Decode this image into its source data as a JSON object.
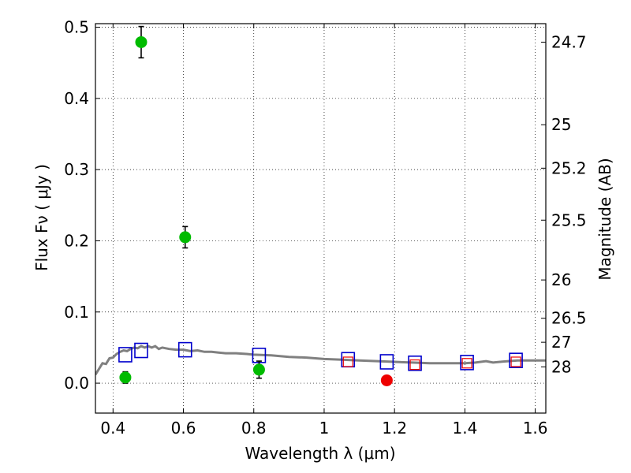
{
  "chart_data": {
    "type": "scatter",
    "xlabel": "Wavelength  λ (μm)",
    "ylabel": "Flux  Fν  ( μJy )",
    "ylabel_right": "Magnitude (AB)",
    "xlim": [
      0.35,
      1.63
    ],
    "ylim": [
      -0.042,
      0.505
    ],
    "grid": true,
    "x_ticks": [
      0.4,
      0.6,
      0.8,
      1.0,
      1.2,
      1.4,
      1.6
    ],
    "x_tick_labels": [
      "0.4",
      "0.6",
      "0.8",
      "1",
      "1.2",
      "1.4",
      "1.6"
    ],
    "y_ticks": [
      0.0,
      0.1,
      0.2,
      0.3,
      0.4,
      0.5
    ],
    "y_tick_labels": [
      "0.0",
      "0.1",
      "0.2",
      "0.3",
      "0.4",
      "0.5"
    ],
    "right_ticks": [
      {
        "flux": 0.479,
        "label": "24.7"
      },
      {
        "flux": 0.363,
        "label": "25"
      },
      {
        "flux": 0.302,
        "label": "25.2"
      },
      {
        "flux": 0.229,
        "label": "25.5"
      },
      {
        "flux": 0.145,
        "label": "26"
      },
      {
        "flux": 0.0912,
        "label": "26.5"
      },
      {
        "flux": 0.0575,
        "label": "27"
      },
      {
        "flux": 0.0229,
        "label": "28"
      }
    ],
    "series": [
      {
        "kind": "detection",
        "color": "#00bb00",
        "points": [
          {
            "x": 0.435,
            "y": 0.008,
            "err": 0.008
          },
          {
            "x": 0.48,
            "y": 0.479,
            "err": 0.022
          },
          {
            "x": 0.605,
            "y": 0.205,
            "err": 0.015
          },
          {
            "x": 0.815,
            "y": 0.019,
            "err": 0.012
          }
        ]
      },
      {
        "kind": "detection",
        "color": "#ee0000",
        "points": [
          {
            "x": 1.178,
            "y": 0.004,
            "err": 0.004
          }
        ]
      },
      {
        "kind": "model-band",
        "color": "#0000cc",
        "points": [
          {
            "x": 0.435,
            "y": 0.04
          },
          {
            "x": 0.48,
            "y": 0.046
          },
          {
            "x": 0.605,
            "y": 0.047
          },
          {
            "x": 0.815,
            "y": 0.039
          },
          {
            "x": 1.068,
            "y": 0.033
          },
          {
            "x": 1.178,
            "y": 0.03
          },
          {
            "x": 1.258,
            "y": 0.028
          },
          {
            "x": 1.406,
            "y": 0.029
          },
          {
            "x": 1.545,
            "y": 0.032
          }
        ]
      },
      {
        "kind": "model-band-inner",
        "color": "#ee0000",
        "points": [
          {
            "x": 1.068,
            "y": 0.03
          },
          {
            "x": 1.258,
            "y": 0.026
          },
          {
            "x": 1.406,
            "y": 0.028
          },
          {
            "x": 1.545,
            "y": 0.03
          }
        ]
      },
      {
        "kind": "model-spectrum",
        "color": "#808080",
        "points": [
          {
            "x": 0.35,
            "y": 0.012
          },
          {
            "x": 0.36,
            "y": 0.02
          },
          {
            "x": 0.37,
            "y": 0.028
          },
          {
            "x": 0.38,
            "y": 0.027
          },
          {
            "x": 0.39,
            "y": 0.035
          },
          {
            "x": 0.4,
            "y": 0.036
          },
          {
            "x": 0.41,
            "y": 0.041
          },
          {
            "x": 0.42,
            "y": 0.044
          },
          {
            "x": 0.43,
            "y": 0.046
          },
          {
            "x": 0.44,
            "y": 0.045
          },
          {
            "x": 0.45,
            "y": 0.048
          },
          {
            "x": 0.46,
            "y": 0.05
          },
          {
            "x": 0.47,
            "y": 0.049
          },
          {
            "x": 0.48,
            "y": 0.052
          },
          {
            "x": 0.49,
            "y": 0.05
          },
          {
            "x": 0.5,
            "y": 0.052
          },
          {
            "x": 0.51,
            "y": 0.05
          },
          {
            "x": 0.52,
            "y": 0.052
          },
          {
            "x": 0.53,
            "y": 0.048
          },
          {
            "x": 0.54,
            "y": 0.05
          },
          {
            "x": 0.55,
            "y": 0.049
          },
          {
            "x": 0.56,
            "y": 0.048
          },
          {
            "x": 0.58,
            "y": 0.047
          },
          {
            "x": 0.6,
            "y": 0.047
          },
          {
            "x": 0.62,
            "y": 0.045
          },
          {
            "x": 0.64,
            "y": 0.046
          },
          {
            "x": 0.66,
            "y": 0.044
          },
          {
            "x": 0.68,
            "y": 0.044
          },
          {
            "x": 0.7,
            "y": 0.043
          },
          {
            "x": 0.72,
            "y": 0.042
          },
          {
            "x": 0.75,
            "y": 0.042
          },
          {
            "x": 0.78,
            "y": 0.041
          },
          {
            "x": 0.8,
            "y": 0.04
          },
          {
            "x": 0.85,
            "y": 0.039
          },
          {
            "x": 0.9,
            "y": 0.037
          },
          {
            "x": 0.95,
            "y": 0.036
          },
          {
            "x": 1.0,
            "y": 0.034
          },
          {
            "x": 1.05,
            "y": 0.033
          },
          {
            "x": 1.1,
            "y": 0.032
          },
          {
            "x": 1.15,
            "y": 0.031
          },
          {
            "x": 1.2,
            "y": 0.03
          },
          {
            "x": 1.25,
            "y": 0.029
          },
          {
            "x": 1.3,
            "y": 0.028
          },
          {
            "x": 1.35,
            "y": 0.028
          },
          {
            "x": 1.4,
            "y": 0.028
          },
          {
            "x": 1.43,
            "y": 0.029
          },
          {
            "x": 1.46,
            "y": 0.031
          },
          {
            "x": 1.48,
            "y": 0.029
          },
          {
            "x": 1.5,
            "y": 0.03
          },
          {
            "x": 1.55,
            "y": 0.032
          },
          {
            "x": 1.6,
            "y": 0.032
          },
          {
            "x": 1.63,
            "y": 0.032
          }
        ]
      }
    ]
  }
}
